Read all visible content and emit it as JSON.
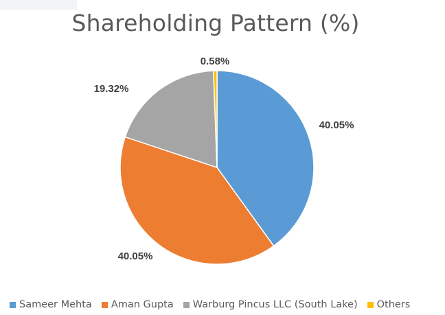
{
  "chart_data": {
    "type": "pie",
    "title": "Shareholding Pattern (%)",
    "categories": [
      "Sameer Mehta",
      "Aman Gupta",
      "Warburg Pincus LLC (South Lake)",
      "Others"
    ],
    "values": [
      40.05,
      40.05,
      19.32,
      0.58
    ],
    "data_labels": [
      "40.05%",
      "40.05%",
      "19.32%",
      "0.58%"
    ],
    "colors": [
      "#5b9bd5",
      "#ed7d31",
      "#a5a5a5",
      "#ffc000"
    ],
    "start_angle": "12 o'clock",
    "direction": "clockwise",
    "legend_position": "bottom"
  }
}
